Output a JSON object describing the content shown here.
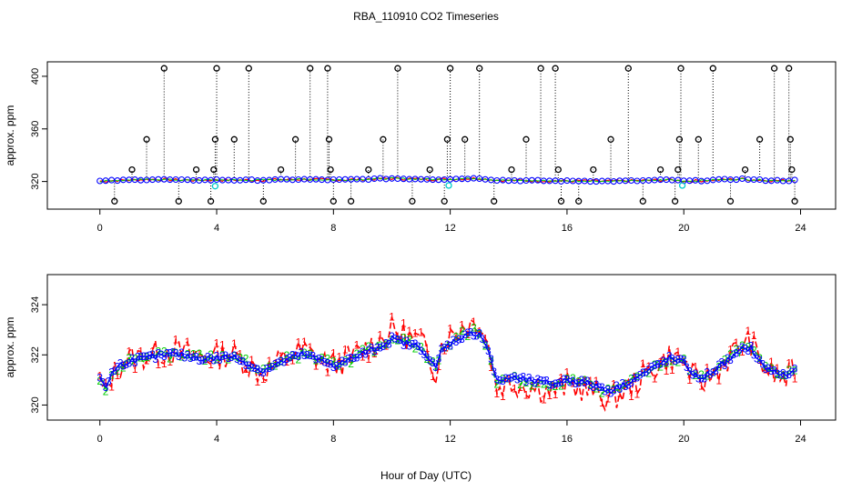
{
  "chart_data": {
    "type": "line",
    "title": "RBA_110910  CO2 Timeseries",
    "xlabel": "Hour of Day (UTC)",
    "xlim": [
      -1.8,
      25.2
    ],
    "x_ticks": [
      0,
      4,
      8,
      12,
      16,
      20,
      24
    ],
    "x_tick_labels": [
      "0",
      "4",
      "8",
      "12",
      "16",
      "20",
      "24"
    ],
    "colors": {
      "series1": "#ff0000",
      "series2": "#00cc00",
      "series3": "#0000ff",
      "outlier": "#00cccc",
      "frame": "#000000"
    },
    "panels": [
      {
        "name": "top",
        "ylabel": "approx. ppm",
        "ylim": [
          299,
          411
        ],
        "y_ticks": [
          320,
          360,
          400
        ],
        "y_tick_labels": [
          "320",
          "360",
          "400"
        ],
        "baseline": [
          [
            0.0,
            320.3
          ],
          [
            0.5,
            320.8
          ],
          [
            1.0,
            321.1
          ],
          [
            1.5,
            321.4
          ],
          [
            2.0,
            321.6
          ],
          [
            2.5,
            321.3
          ],
          [
            3.0,
            321.0
          ],
          [
            3.5,
            321.1
          ],
          [
            4.0,
            321.2
          ],
          [
            4.5,
            321.1
          ],
          [
            5.0,
            321.0
          ],
          [
            5.5,
            321.1
          ],
          [
            6.0,
            321.3
          ],
          [
            6.5,
            321.5
          ],
          [
            7.0,
            321.6
          ],
          [
            7.5,
            321.4
          ],
          [
            8.0,
            321.2
          ],
          [
            8.5,
            321.4
          ],
          [
            9.0,
            321.7
          ],
          [
            9.5,
            322.0
          ],
          [
            10.0,
            322.3
          ],
          [
            10.5,
            322.1
          ],
          [
            11.0,
            321.9
          ],
          [
            11.5,
            321.6
          ],
          [
            12.0,
            321.8
          ],
          [
            12.5,
            322.2
          ],
          [
            13.0,
            322.4
          ],
          [
            13.5,
            321.2
          ],
          [
            14.0,
            320.8
          ],
          [
            14.5,
            320.7
          ],
          [
            15.0,
            320.6
          ],
          [
            15.5,
            320.5
          ],
          [
            16.0,
            320.4
          ],
          [
            16.5,
            320.5
          ],
          [
            17.0,
            320.3
          ],
          [
            17.5,
            320.2
          ],
          [
            18.0,
            320.4
          ],
          [
            18.5,
            320.6
          ],
          [
            19.0,
            320.9
          ],
          [
            19.5,
            321.3
          ],
          [
            20.0,
            320.4
          ],
          [
            20.5,
            320.6
          ],
          [
            21.0,
            321.1
          ],
          [
            21.5,
            321.5
          ],
          [
            22.0,
            321.9
          ],
          [
            22.5,
            321.2
          ],
          [
            23.0,
            320.8
          ],
          [
            23.5,
            320.7
          ],
          [
            23.8,
            320.9
          ]
        ],
        "spikes": [
          [
            0.5,
            305
          ],
          [
            1.1,
            329
          ],
          [
            1.6,
            352
          ],
          [
            2.2,
            406
          ],
          [
            2.7,
            305
          ],
          [
            3.3,
            329
          ],
          [
            3.8,
            305
          ],
          [
            3.9,
            329
          ],
          [
            3.95,
            352
          ],
          [
            4.0,
            406
          ],
          [
            4.6,
            352
          ],
          [
            5.1,
            406
          ],
          [
            5.6,
            305
          ],
          [
            6.2,
            329
          ],
          [
            6.7,
            352
          ],
          [
            7.2,
            406
          ],
          [
            7.8,
            406
          ],
          [
            7.85,
            352
          ],
          [
            7.9,
            329
          ],
          [
            8.0,
            305
          ],
          [
            8.6,
            305
          ],
          [
            9.2,
            329
          ],
          [
            9.7,
            352
          ],
          [
            10.2,
            406
          ],
          [
            10.7,
            305
          ],
          [
            11.3,
            329
          ],
          [
            11.8,
            305
          ],
          [
            11.9,
            352
          ],
          [
            12.0,
            406
          ],
          [
            12.5,
            352
          ],
          [
            13.0,
            406
          ],
          [
            13.5,
            305
          ],
          [
            14.1,
            329
          ],
          [
            14.6,
            352
          ],
          [
            15.1,
            406
          ],
          [
            15.6,
            406
          ],
          [
            15.7,
            329
          ],
          [
            15.8,
            305
          ],
          [
            16.4,
            305
          ],
          [
            16.9,
            329
          ],
          [
            17.5,
            352
          ],
          [
            18.1,
            406
          ],
          [
            18.6,
            305
          ],
          [
            19.2,
            329
          ],
          [
            19.7,
            305
          ],
          [
            19.8,
            329
          ],
          [
            19.85,
            352
          ],
          [
            19.9,
            406
          ],
          [
            20.5,
            352
          ],
          [
            21.0,
            406
          ],
          [
            21.6,
            305
          ],
          [
            22.1,
            329
          ],
          [
            22.6,
            352
          ],
          [
            23.1,
            406
          ],
          [
            23.6,
            406
          ],
          [
            23.65,
            352
          ],
          [
            23.7,
            329
          ],
          [
            23.8,
            305
          ]
        ],
        "cyan_points": [
          [
            3.95,
            316.5
          ],
          [
            11.95,
            317.0
          ],
          [
            19.95,
            317.0
          ]
        ]
      },
      {
        "name": "bottom",
        "ylabel": "approx. ppm",
        "ylim": [
          319.4,
          325.2
        ],
        "y_ticks": [
          320,
          322,
          324
        ],
        "y_tick_labels": [
          "320",
          "322",
          "324"
        ],
        "baseline": [
          [
            0.0,
            321.0
          ],
          [
            0.2,
            320.6
          ],
          [
            0.4,
            321.2
          ],
          [
            0.7,
            321.6
          ],
          [
            1.0,
            321.8
          ],
          [
            1.5,
            321.9
          ],
          [
            2.0,
            322.0
          ],
          [
            2.5,
            322.1
          ],
          [
            3.0,
            322.0
          ],
          [
            3.5,
            321.9
          ],
          [
            4.0,
            321.9
          ],
          [
            4.5,
            322.0
          ],
          [
            5.0,
            321.7
          ],
          [
            5.5,
            321.3
          ],
          [
            6.0,
            321.6
          ],
          [
            6.5,
            321.9
          ],
          [
            7.0,
            322.1
          ],
          [
            7.5,
            321.8
          ],
          [
            8.0,
            321.6
          ],
          [
            8.5,
            321.8
          ],
          [
            9.0,
            322.1
          ],
          [
            9.5,
            322.4
          ],
          [
            10.0,
            322.8
          ],
          [
            10.5,
            322.6
          ],
          [
            11.0,
            322.4
          ],
          [
            11.5,
            321.4
          ],
          [
            11.7,
            322.3
          ],
          [
            12.0,
            322.6
          ],
          [
            12.5,
            323.0
          ],
          [
            13.0,
            323.1
          ],
          [
            13.3,
            322.3
          ],
          [
            13.6,
            320.8
          ],
          [
            14.0,
            321.0
          ],
          [
            14.5,
            320.9
          ],
          [
            15.0,
            320.8
          ],
          [
            15.5,
            320.7
          ],
          [
            16.0,
            320.9
          ],
          [
            16.5,
            320.8
          ],
          [
            17.0,
            320.6
          ],
          [
            17.5,
            320.4
          ],
          [
            18.0,
            320.7
          ],
          [
            18.5,
            321.1
          ],
          [
            19.0,
            321.5
          ],
          [
            19.5,
            321.9
          ],
          [
            20.0,
            321.7
          ],
          [
            20.5,
            320.9
          ],
          [
            21.0,
            321.3
          ],
          [
            21.5,
            321.8
          ],
          [
            22.0,
            322.3
          ],
          [
            22.3,
            322.4
          ],
          [
            22.6,
            321.7
          ],
          [
            23.0,
            321.3
          ],
          [
            23.5,
            321.1
          ],
          [
            23.8,
            321.4
          ]
        ],
        "series_labels": [
          "1",
          "2",
          "3"
        ]
      }
    ]
  }
}
